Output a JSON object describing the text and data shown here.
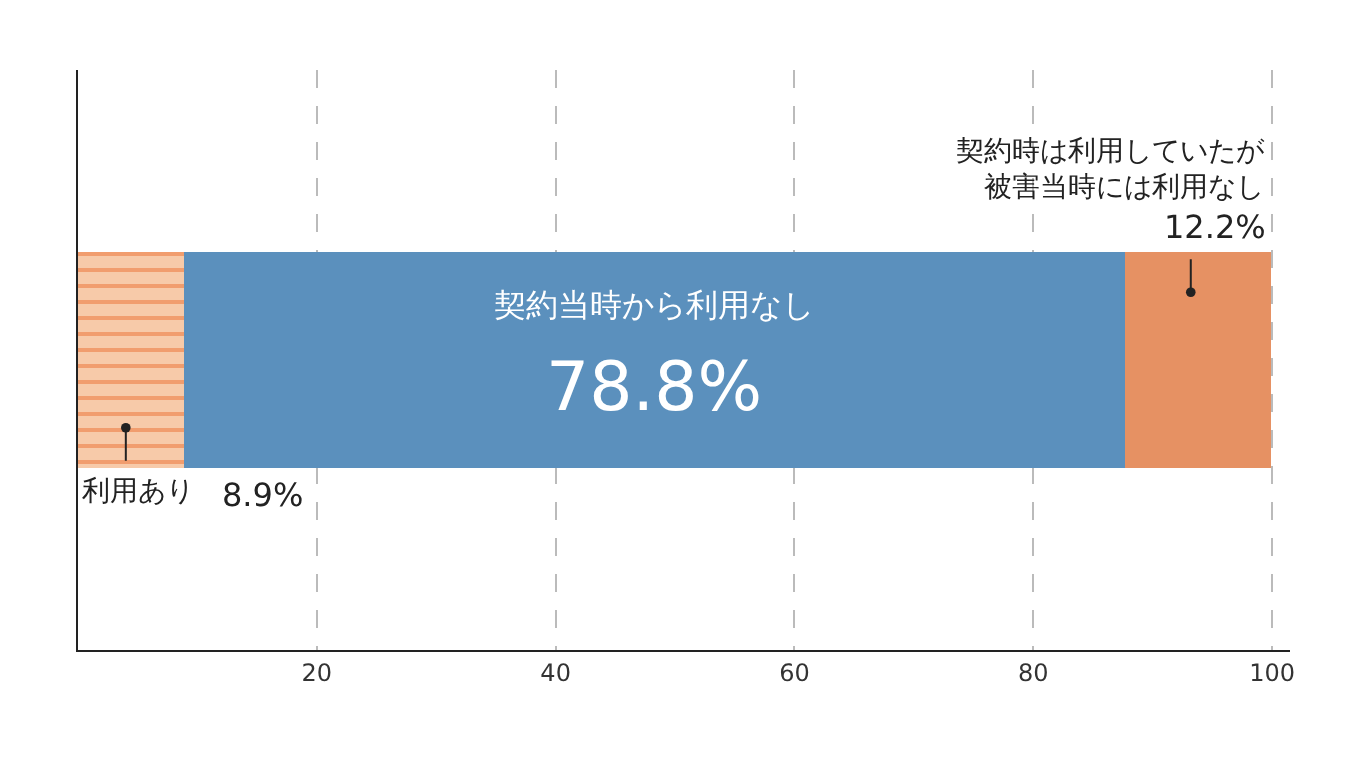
{
  "chart_data": {
    "type": "bar",
    "orientation": "horizontal",
    "stacked": true,
    "categories": [
      null
    ],
    "series": [
      {
        "name": "利用あり",
        "color": "#f7caa9",
        "values": [
          8.9
        ],
        "value_labels": [
          "8.9%"
        ]
      },
      {
        "name": "契約当時から利用なし",
        "color": "#5b90bd",
        "values": [
          78.8
        ],
        "value_labels": [
          "78.8%"
        ]
      },
      {
        "name": "契約時は利用していたが被害当時には利用なし",
        "color": "#e69163",
        "values": [
          12.2
        ],
        "value_labels": [
          "12.2%"
        ]
      }
    ],
    "xlim": [
      0,
      101.5
    ],
    "xticks": [
      20,
      40,
      60,
      80,
      100
    ],
    "grid": "x",
    "legend": false
  }
}
